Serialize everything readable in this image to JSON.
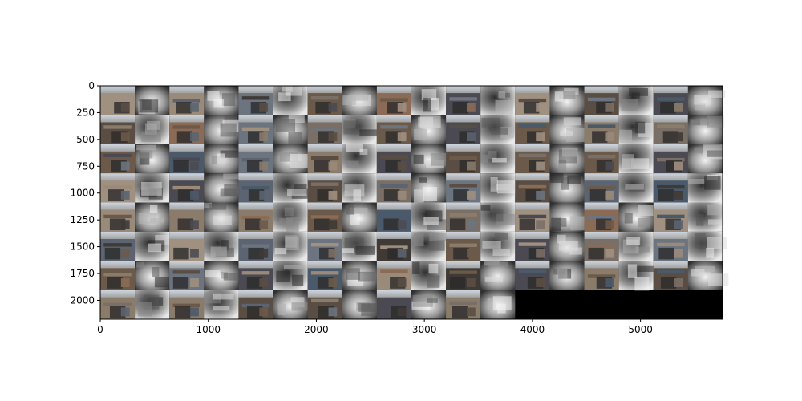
{
  "image": {
    "description_kind": "matplotlib imshow mosaic",
    "x_ticks": [
      "0",
      "1000",
      "2000",
      "3000",
      "4000",
      "5000"
    ],
    "y_ticks": [
      "0",
      "250",
      "500",
      "750",
      "1000",
      "1250",
      "1500",
      "1750",
      "2000"
    ],
    "x_tick_values": [
      0,
      1000,
      2000,
      3000,
      4000,
      5000
    ],
    "y_tick_values": [
      0,
      250,
      500,
      750,
      1000,
      1250,
      1500,
      1750,
      2000
    ],
    "x_range": [
      0,
      5760
    ],
    "y_range": [
      0,
      2176
    ],
    "grid_rows": 8,
    "grid_cols": 18,
    "filled_tiles": 138,
    "tile_types": [
      "storefront-photo",
      "depth-map"
    ],
    "background_color": "#000000",
    "photo_palette": [
      "#6b5a4a",
      "#8a7b6a",
      "#4b4a52",
      "#7a6f66",
      "#5b6470",
      "#9a8a7a",
      "#3f3a36",
      "#a09080",
      "#5a4e44",
      "#6c7480",
      "#8b6b55",
      "#4a5a6a"
    ],
    "depth_palette": [
      "#2a2a2a",
      "#5a5a5a",
      "#8a8a8a",
      "#b5b5b5",
      "#dcdcdc",
      "#f2f2f2"
    ]
  }
}
